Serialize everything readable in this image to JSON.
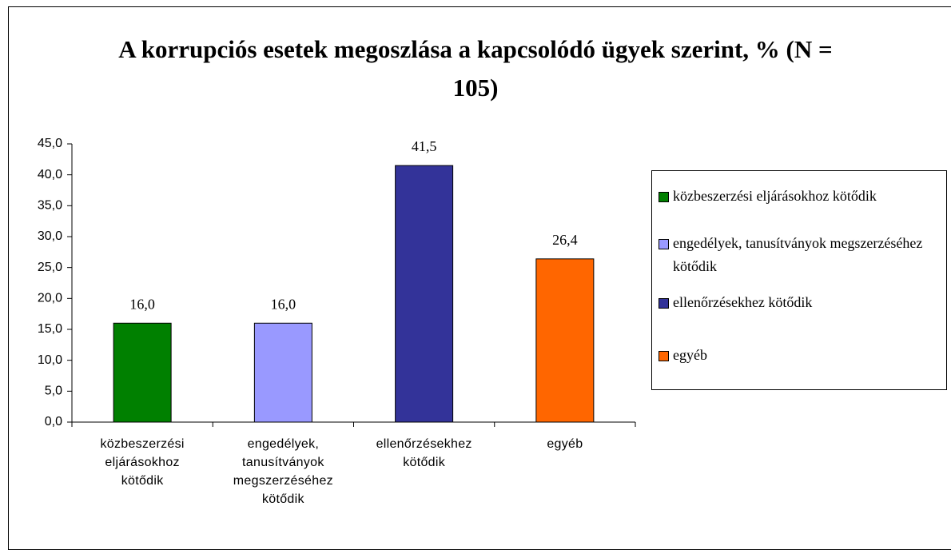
{
  "chart_data": {
    "type": "bar",
    "title": "A korrupciós esetek megoszlása a kapcsolódó ügyek szerint, % (N = 105)",
    "categories": [
      "közbeszerzési eljárásokhoz kötődik",
      "engedélyek, tanusítványok megszerzéséhez kötődik",
      "ellenőrzésekhez kötődik",
      "egyéb"
    ],
    "values": [
      16.0,
      16.0,
      41.5,
      26.4
    ],
    "value_labels": [
      "16,0",
      "16,0",
      "41,5",
      "26,4"
    ],
    "colors": [
      "#008000",
      "#9999ff",
      "#333399",
      "#ff6600"
    ],
    "ylim": [
      0,
      45
    ],
    "yticks": [
      {
        "value": 0,
        "label": "0,0"
      },
      {
        "value": 5,
        "label": "5,0"
      },
      {
        "value": 10,
        "label": "10,0"
      },
      {
        "value": 15,
        "label": "15,0"
      },
      {
        "value": 20,
        "label": "20,0"
      },
      {
        "value": 25,
        "label": "25,0"
      },
      {
        "value": 30,
        "label": "30,0"
      },
      {
        "value": 35,
        "label": "35,0"
      },
      {
        "value": 40,
        "label": "40,0"
      },
      {
        "value": 45,
        "label": "45,0"
      }
    ],
    "grid": false,
    "legend": "right"
  }
}
